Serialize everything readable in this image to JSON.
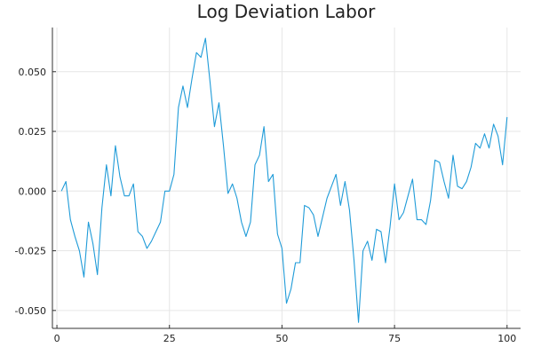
{
  "chart_data": {
    "type": "line",
    "title": "Log Deviation Labor",
    "xlabel": "",
    "ylabel": "",
    "xlim": [
      -1,
      103
    ],
    "ylim": [
      -0.0575,
      0.0685
    ],
    "x_ticks": [
      0,
      25,
      50,
      75,
      100
    ],
    "x_tick_labels": [
      "0",
      "25",
      "50",
      "75",
      "100"
    ],
    "y_ticks": [
      -0.05,
      -0.025,
      0.0,
      0.025,
      0.05
    ],
    "y_tick_labels": [
      "-0.050",
      "-0.025",
      "0.000",
      "0.025",
      "0.050"
    ],
    "grid": true,
    "legend": "none",
    "series": [
      {
        "color": "#1f9bd8",
        "x": [
          1,
          2,
          3,
          4,
          5,
          6,
          7,
          8,
          9,
          10,
          11,
          12,
          13,
          14,
          15,
          16,
          17,
          18,
          19,
          20,
          21,
          22,
          23,
          24,
          25,
          26,
          27,
          28,
          29,
          30,
          31,
          32,
          33,
          34,
          35,
          36,
          37,
          38,
          39,
          40,
          41,
          42,
          43,
          44,
          45,
          46,
          47,
          48,
          49,
          50,
          51,
          52,
          53,
          54,
          55,
          56,
          57,
          58,
          59,
          60,
          61,
          62,
          63,
          64,
          65,
          66,
          67,
          68,
          69,
          70,
          71,
          72,
          73,
          74,
          75,
          76,
          77,
          78,
          79,
          80,
          81,
          82,
          83,
          84,
          85,
          86,
          87,
          88,
          89,
          90,
          91,
          92,
          93,
          94,
          95,
          96,
          97,
          98,
          99,
          100
        ],
        "y": [
          0.0,
          0.004,
          -0.012,
          -0.019,
          -0.025,
          -0.036,
          -0.013,
          -0.022,
          -0.035,
          -0.007,
          0.011,
          -0.002,
          0.019,
          0.006,
          -0.002,
          -0.002,
          0.003,
          -0.017,
          -0.019,
          -0.024,
          -0.021,
          -0.017,
          -0.013,
          0.0,
          0.0,
          0.007,
          0.035,
          0.044,
          0.035,
          0.047,
          0.058,
          0.056,
          0.064,
          0.046,
          0.027,
          0.037,
          0.019,
          -0.001,
          0.003,
          -0.003,
          -0.013,
          -0.019,
          -0.013,
          0.011,
          0.015,
          0.027,
          0.004,
          0.007,
          -0.018,
          -0.024,
          -0.047,
          -0.041,
          -0.03,
          -0.03,
          -0.006,
          -0.007,
          -0.01,
          -0.019,
          -0.011,
          -0.003,
          0.002,
          0.007,
          -0.006,
          0.004,
          -0.008,
          -0.029,
          -0.055,
          -0.025,
          -0.021,
          -0.029,
          -0.016,
          -0.017,
          -0.03,
          -0.015,
          0.003,
          -0.012,
          -0.009,
          -0.002,
          0.005,
          -0.012,
          -0.012,
          -0.014,
          -0.004,
          0.013,
          0.012,
          0.004,
          -0.003,
          0.015,
          0.002,
          0.001,
          0.004,
          0.01,
          0.02,
          0.018,
          0.024,
          0.018,
          0.028,
          0.023,
          0.011,
          0.031
        ]
      }
    ]
  }
}
